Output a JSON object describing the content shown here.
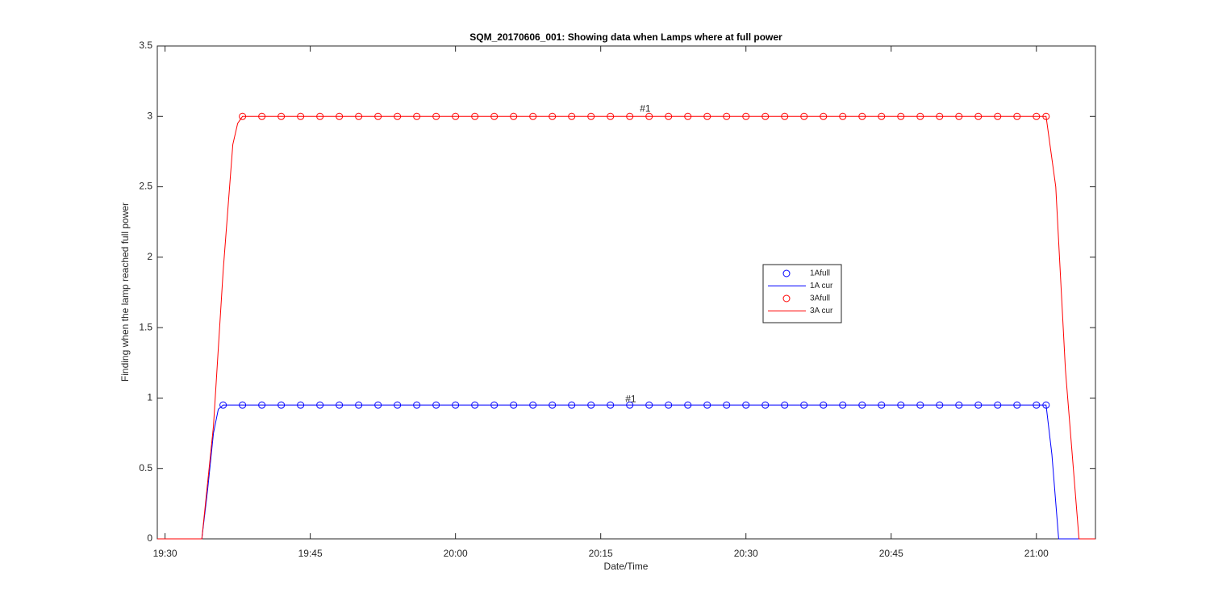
{
  "chart_data": {
    "type": "line",
    "title": "SQM_20170606_001: Showing data when Lamps where at full power",
    "xlabel": "Date/Time",
    "ylabel": "Finding when the lamp reached full power",
    "xlim": [
      1169.2,
      1266.1
    ],
    "xticks": [
      {
        "value": 1170,
        "label": "19:30"
      },
      {
        "value": 1185,
        "label": "19:45"
      },
      {
        "value": 1200,
        "label": "20:00"
      },
      {
        "value": 1215,
        "label": "20:15"
      },
      {
        "value": 1230,
        "label": "20:30"
      },
      {
        "value": 1245,
        "label": "20:45"
      },
      {
        "value": 1260,
        "label": "21:00"
      }
    ],
    "ylim": [
      0,
      3.5
    ],
    "yticks": [
      0,
      0.5,
      1,
      1.5,
      2,
      2.5,
      3,
      3.5
    ],
    "grid": false,
    "legend": "inside",
    "series": [
      {
        "name": "1Afull",
        "color": "#0000ff",
        "marker": "o",
        "x": [
          1176,
          1178,
          1180,
          1182,
          1184,
          1186,
          1188,
          1190,
          1192,
          1194,
          1196,
          1198,
          1200,
          1202,
          1204,
          1206,
          1208,
          1210,
          1212,
          1214,
          1216,
          1218,
          1220,
          1222,
          1224,
          1226,
          1228,
          1230,
          1232,
          1234,
          1236,
          1238,
          1240,
          1242,
          1244,
          1246,
          1248,
          1250,
          1252,
          1254,
          1256,
          1258,
          1260,
          1261
        ],
        "values": [
          0.95,
          0.95,
          0.95,
          0.95,
          0.95,
          0.95,
          0.95,
          0.95,
          0.95,
          0.95,
          0.95,
          0.95,
          0.95,
          0.95,
          0.95,
          0.95,
          0.95,
          0.95,
          0.95,
          0.95,
          0.95,
          0.95,
          0.95,
          0.95,
          0.95,
          0.95,
          0.95,
          0.95,
          0.95,
          0.95,
          0.95,
          0.95,
          0.95,
          0.95,
          0.95,
          0.95,
          0.95,
          0.95,
          0.95,
          0.95,
          0.95,
          0.95,
          0.95,
          0.95
        ]
      },
      {
        "name": "1A cur",
        "color": "#0000ff",
        "marker": "none",
        "x": [
          1169.2,
          1173.8,
          1174.4,
          1175,
          1175.5,
          1176,
          1261,
          1261.6,
          1262.3,
          1266.1
        ],
        "values": [
          0,
          0,
          0.35,
          0.75,
          0.92,
          0.95,
          0.95,
          0.6,
          0,
          0
        ]
      },
      {
        "name": "3Afull",
        "color": "#ff0000",
        "marker": "o",
        "x": [
          1178,
          1180,
          1182,
          1184,
          1186,
          1188,
          1190,
          1192,
          1194,
          1196,
          1198,
          1200,
          1202,
          1204,
          1206,
          1208,
          1210,
          1212,
          1214,
          1216,
          1218,
          1220,
          1222,
          1224,
          1226,
          1228,
          1230,
          1232,
          1234,
          1236,
          1238,
          1240,
          1242,
          1244,
          1246,
          1248,
          1250,
          1252,
          1254,
          1256,
          1258,
          1260,
          1261
        ],
        "values": [
          3,
          3,
          3,
          3,
          3,
          3,
          3,
          3,
          3,
          3,
          3,
          3,
          3,
          3,
          3,
          3,
          3,
          3,
          3,
          3,
          3,
          3,
          3,
          3,
          3,
          3,
          3,
          3,
          3,
          3,
          3,
          3,
          3,
          3,
          3,
          3,
          3,
          3,
          3,
          3,
          3,
          3,
          3
        ]
      },
      {
        "name": "3A cur",
        "color": "#ff0000",
        "marker": "none",
        "x": [
          1169.2,
          1173.8,
          1175,
          1176,
          1177,
          1177.5,
          1178,
          1261,
          1262,
          1263,
          1264.4,
          1266.1
        ],
        "values": [
          0,
          0,
          0.8,
          1.9,
          2.8,
          2.95,
          3,
          3,
          2.5,
          1.2,
          0,
          0
        ]
      }
    ],
    "annotations": [
      {
        "text": "#1",
        "x": 1219.6,
        "y": 3.05
      },
      {
        "text": "#1",
        "x": 1218.1,
        "y": 0.99
      }
    ]
  }
}
